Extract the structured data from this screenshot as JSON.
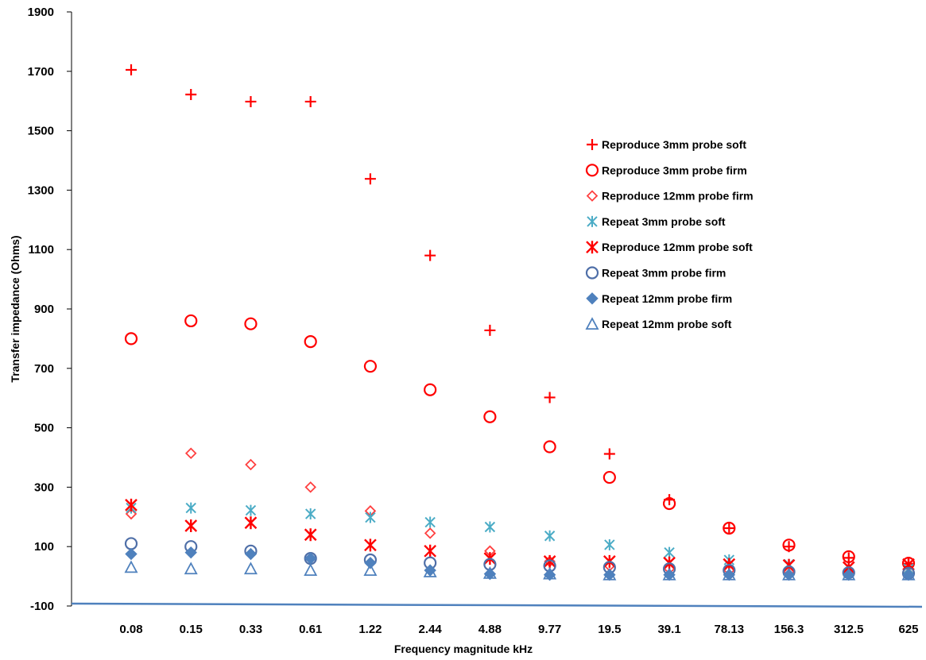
{
  "chart_data": {
    "type": "scatter",
    "title": "",
    "xlabel": "Frequency magnitude kHz",
    "ylabel": "Transfer impedance (Ohms)",
    "categories": [
      "0.08",
      "0.15",
      "0.33",
      "0.61",
      "1.22",
      "2.44",
      "4.88",
      "9.77",
      "19.5",
      "39.1",
      "78.13",
      "156.3",
      "312.5",
      "625"
    ],
    "ylim": [
      -100,
      1900
    ],
    "yticks": [
      -100,
      100,
      300,
      500,
      700,
      900,
      1100,
      1300,
      1500,
      1700,
      1900
    ],
    "grid": false,
    "legend_position": "right",
    "series": [
      {
        "name": "Reproduce 3mm probe soft",
        "marker": "plus",
        "color": "#ff0000",
        "values": [
          1705,
          1622,
          1598,
          1598,
          1338,
          1080,
          828,
          602,
          412,
          258,
          162,
          100,
          62,
          42
        ]
      },
      {
        "name": "Reproduce 3mm probe firm",
        "marker": "circle",
        "color": "#ff0000",
        "values": [
          800,
          860,
          850,
          790,
          707,
          628,
          537,
          436,
          333,
          245,
          162,
          105,
          66,
          44
        ]
      },
      {
        "name": "Reproduce 12mm probe firm",
        "marker": "diamond",
        "color": "#ff4040",
        "values": [
          210,
          414,
          376,
          300,
          220,
          145,
          85,
          50,
          35,
          25,
          20,
          15,
          12,
          10
        ]
      },
      {
        "name": "Repeat 3mm probe soft",
        "marker": "star",
        "color": "#4bacc6",
        "values": [
          230,
          230,
          222,
          210,
          198,
          182,
          166,
          136,
          106,
          80,
          55,
          40,
          30,
          25
        ]
      },
      {
        "name": "Reproduce 12mm probe soft",
        "marker": "xstar",
        "color": "#ff0000",
        "values": [
          240,
          170,
          180,
          140,
          105,
          85,
          60,
          50,
          50,
          45,
          40,
          37,
          30,
          40
        ]
      },
      {
        "name": "Repeat 3mm probe firm",
        "marker": "circle",
        "color": "#4f6fa8",
        "values": [
          110,
          100,
          85,
          60,
          55,
          45,
          40,
          35,
          30,
          25,
          20,
          15,
          12,
          10
        ]
      },
      {
        "name": "Repeat 12mm probe firm",
        "marker": "filled-diamond",
        "color": "#4f81bd",
        "values": [
          75,
          80,
          75,
          60,
          45,
          20,
          8,
          5,
          5,
          5,
          5,
          5,
          5,
          5
        ]
      },
      {
        "name": "Repeat 12mm probe soft",
        "marker": "triangle",
        "color": "#4f81bd",
        "values": [
          30,
          25,
          25,
          20,
          20,
          15,
          10,
          8,
          5,
          5,
          5,
          5,
          5,
          5
        ]
      }
    ]
  }
}
